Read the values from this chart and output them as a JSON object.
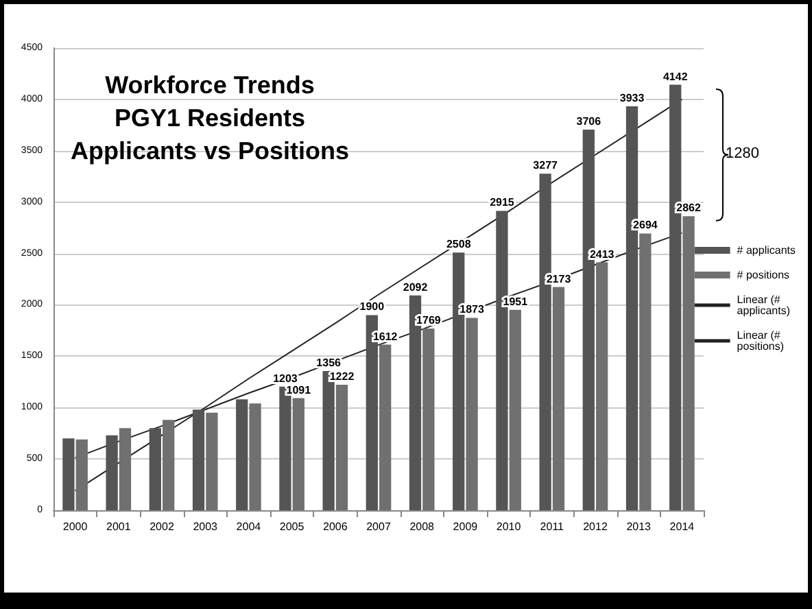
{
  "chart_data": {
    "type": "bar",
    "title": "Workforce Trends\nPGY1 Residents\nApplicants vs Positions",
    "categories": [
      "2000",
      "2001",
      "2002",
      "2003",
      "2004",
      "2005",
      "2006",
      "2007",
      "2008",
      "2009",
      "2010",
      "2011",
      "2012",
      "2013",
      "2014"
    ],
    "series": [
      {
        "name": "# applicants",
        "color": "#555555",
        "values": [
          700,
          730,
          800,
          980,
          1080,
          1203,
          1356,
          1900,
          2092,
          2508,
          2915,
          3277,
          3706,
          3933,
          4142
        ],
        "value_labels": [
          null,
          null,
          null,
          null,
          null,
          "1203",
          "1356",
          "1900",
          "2092",
          "2508",
          "2915",
          "3277",
          "3706",
          "3933",
          "4142"
        ]
      },
      {
        "name": "# positions",
        "color": "#707070",
        "values": [
          690,
          800,
          880,
          950,
          1040,
          1091,
          1222,
          1612,
          1769,
          1873,
          1951,
          2173,
          2413,
          2694,
          2862
        ],
        "value_labels": [
          null,
          null,
          null,
          null,
          null,
          "1091",
          "1222",
          "1612",
          "1769",
          "1873",
          "1951",
          "2173",
          "2413",
          "2694",
          "2862"
        ]
      },
      {
        "name": "Linear (# applicants)",
        "type": "line",
        "color": "#222222",
        "values": [
          190,
          460,
          730,
          1000,
          1280,
          1550,
          1820,
          2100,
          2370,
          2640,
          2910,
          3190,
          3460,
          3730,
          4000
        ]
      },
      {
        "name": "Linear (# positions)",
        "type": "line",
        "color": "#222222",
        "values": [
          510,
          670,
          820,
          980,
          1140,
          1290,
          1450,
          1610,
          1760,
          1920,
          2080,
          2230,
          2390,
          2550,
          2700
        ]
      }
    ],
    "ylim": [
      0,
      4500
    ],
    "yticks": [
      0,
      500,
      1000,
      1500,
      2000,
      2500,
      3000,
      3500,
      4000,
      4500
    ],
    "grid": "y",
    "legend": "right",
    "marker": "none",
    "line_style": "solid",
    "annotations": [
      "1280"
    ]
  }
}
